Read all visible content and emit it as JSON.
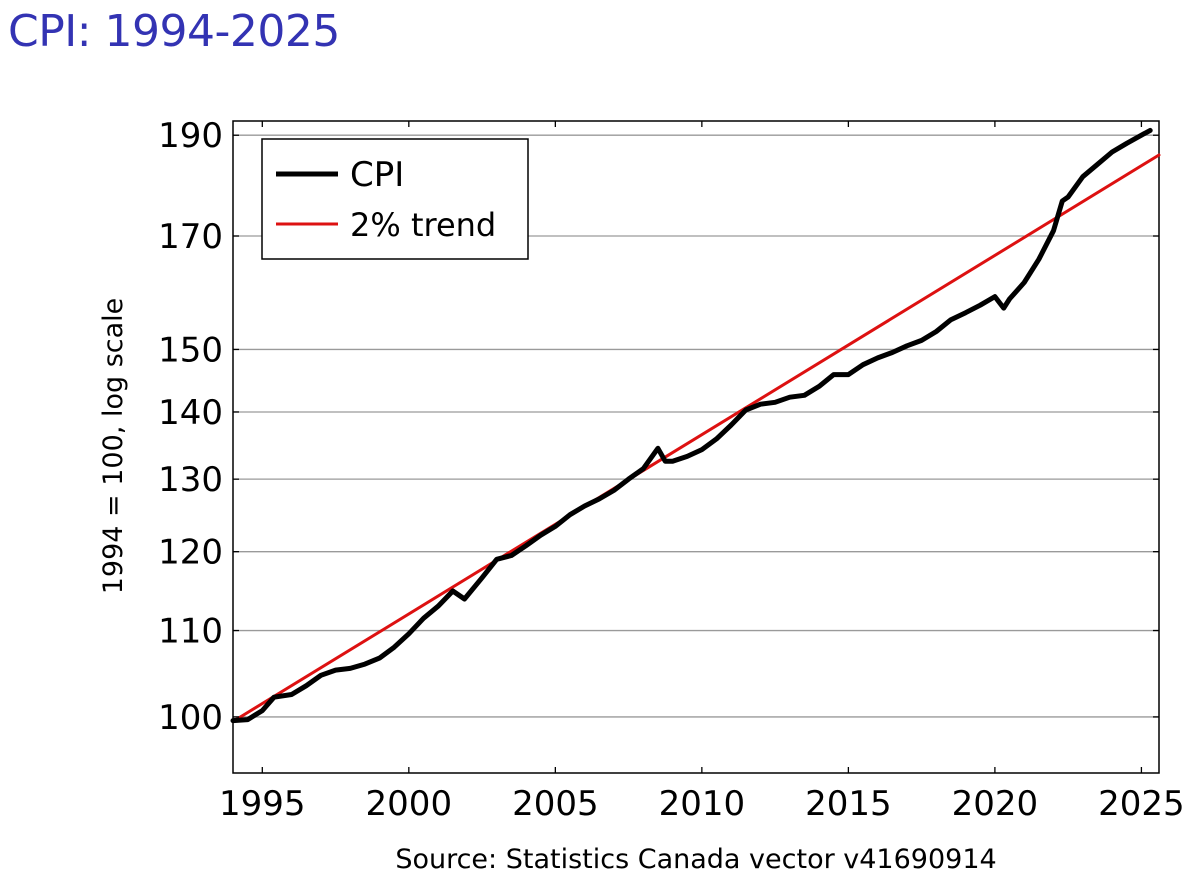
{
  "page": {
    "title": "CPI: 1994-2025"
  },
  "chart_data": {
    "type": "line",
    "title": "CPI: 1994-2025",
    "xlabel": "",
    "ylabel": "1994 = 100, log scale",
    "source": "Source: Statistics Canada vector v41690914",
    "xlim": [
      1994,
      2025.6
    ],
    "ylim": [
      94,
      193
    ],
    "ylog": true,
    "x_ticks": [
      1995,
      2000,
      2005,
      2010,
      2015,
      2020,
      2025
    ],
    "y_ticks": [
      100,
      110,
      120,
      130,
      140,
      150,
      170,
      190
    ],
    "grid": "horizontal",
    "legend": {
      "placement": "top-left"
    },
    "series": [
      {
        "name": "CPI",
        "color": "#000000",
        "x": [
          1994.0,
          1994.5,
          1995.0,
          1995.4,
          1996.0,
          1996.5,
          1997.0,
          1997.5,
          1998.0,
          1998.5,
          1999.0,
          1999.5,
          2000.0,
          2000.5,
          2001.0,
          2001.5,
          2001.9,
          2002.5,
          2003.0,
          2003.5,
          2004.0,
          2004.5,
          2005.0,
          2005.5,
          2006.0,
          2006.5,
          2007.0,
          2007.5,
          2008.0,
          2008.5,
          2008.75,
          2009.0,
          2009.5,
          2010.0,
          2010.5,
          2011.0,
          2011.5,
          2012.0,
          2012.5,
          2013.0,
          2013.5,
          2014.0,
          2014.5,
          2015.0,
          2015.5,
          2016.0,
          2016.5,
          2017.0,
          2017.5,
          2018.0,
          2018.5,
          2019.0,
          2019.5,
          2020.0,
          2020.3,
          2020.5,
          2021.0,
          2021.5,
          2022.0,
          2022.3,
          2022.5,
          2023.0,
          2023.5,
          2024.0,
          2024.5,
          2025.0,
          2025.3
        ],
        "values": [
          99.6,
          99.7,
          100.7,
          102.2,
          102.5,
          103.5,
          104.7,
          105.3,
          105.5,
          106.0,
          106.7,
          108.0,
          109.6,
          111.5,
          113.0,
          114.9,
          113.9,
          116.6,
          119.0,
          119.5,
          120.8,
          122.2,
          123.4,
          125.0,
          126.2,
          127.2,
          128.4,
          130.0,
          131.5,
          134.5,
          132.6,
          132.6,
          133.3,
          134.3,
          135.9,
          138.0,
          140.3,
          141.2,
          141.5,
          142.3,
          142.6,
          144.0,
          145.9,
          145.9,
          147.5,
          148.6,
          149.5,
          150.6,
          151.5,
          153.0,
          155.0,
          156.2,
          157.5,
          159.0,
          157.0,
          158.6,
          161.5,
          165.7,
          171.0,
          176.7,
          177.5,
          181.5,
          184.0,
          186.5,
          188.3,
          190.0,
          191.0
        ]
      },
      {
        "name": "2% trend",
        "color": "#dd1111",
        "x": [
          1994.0,
          2025.6
        ],
        "values": [
          99.5,
          185.9
        ]
      }
    ]
  }
}
